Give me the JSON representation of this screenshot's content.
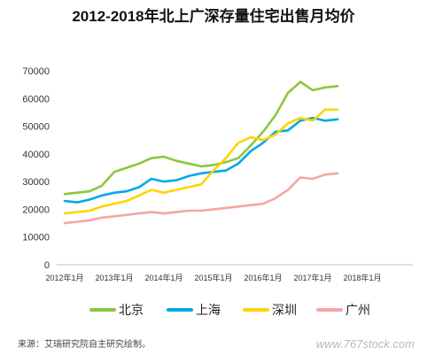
{
  "chart_data": {
    "type": "line",
    "title": "2012-2018年北上广深存量住宅出售月均价",
    "xlabel": "",
    "ylabel": "",
    "ylim": [
      0,
      70000
    ],
    "yticks": [
      "0",
      "10000",
      "20000",
      "30000",
      "40000",
      "50000",
      "60000",
      "70000"
    ],
    "xticks": [
      "2012年1月",
      "2013年1月",
      "2014年1月",
      "2015年1月",
      "2016年1月",
      "2017年1月",
      "2018年1月"
    ],
    "grid": false,
    "legend_position": "bottom",
    "x_start": "2012-01",
    "x_step": "quarter",
    "series": [
      {
        "name": "北京",
        "color": "#8dc63f",
        "values": [
          25500,
          26000,
          26500,
          28500,
          33500,
          35000,
          36500,
          38500,
          39000,
          37500,
          36500,
          35500,
          36000,
          37000,
          38500,
          43000,
          48000,
          54000,
          62000,
          66000,
          63000,
          64000,
          64500
        ]
      },
      {
        "name": "上海",
        "color": "#00a9e6",
        "values": [
          23000,
          22500,
          23500,
          25000,
          26000,
          26500,
          28000,
          31000,
          30000,
          30500,
          32000,
          33000,
          33500,
          34000,
          36500,
          41000,
          44000,
          48000,
          48500,
          52000,
          53000,
          52000,
          52500
        ]
      },
      {
        "name": "深圳",
        "color": "#ffd400",
        "values": [
          18500,
          19000,
          19500,
          21000,
          22000,
          23000,
          25000,
          27000,
          26000,
          27000,
          28000,
          29000,
          34000,
          38500,
          44000,
          46000,
          45000,
          47000,
          51000,
          53000,
          52000,
          56000,
          56000
        ]
      },
      {
        "name": "广州",
        "color": "#f4a6a6",
        "values": [
          15000,
          15500,
          16000,
          17000,
          17500,
          18000,
          18500,
          19000,
          18500,
          19000,
          19500,
          19500,
          20000,
          20500,
          21000,
          21500,
          22000,
          24000,
          27000,
          31500,
          31000,
          32500,
          33000
        ]
      }
    ],
    "source": "来源：艾瑞研究院自主研究绘制。",
    "watermark": "www.767stock.com"
  }
}
